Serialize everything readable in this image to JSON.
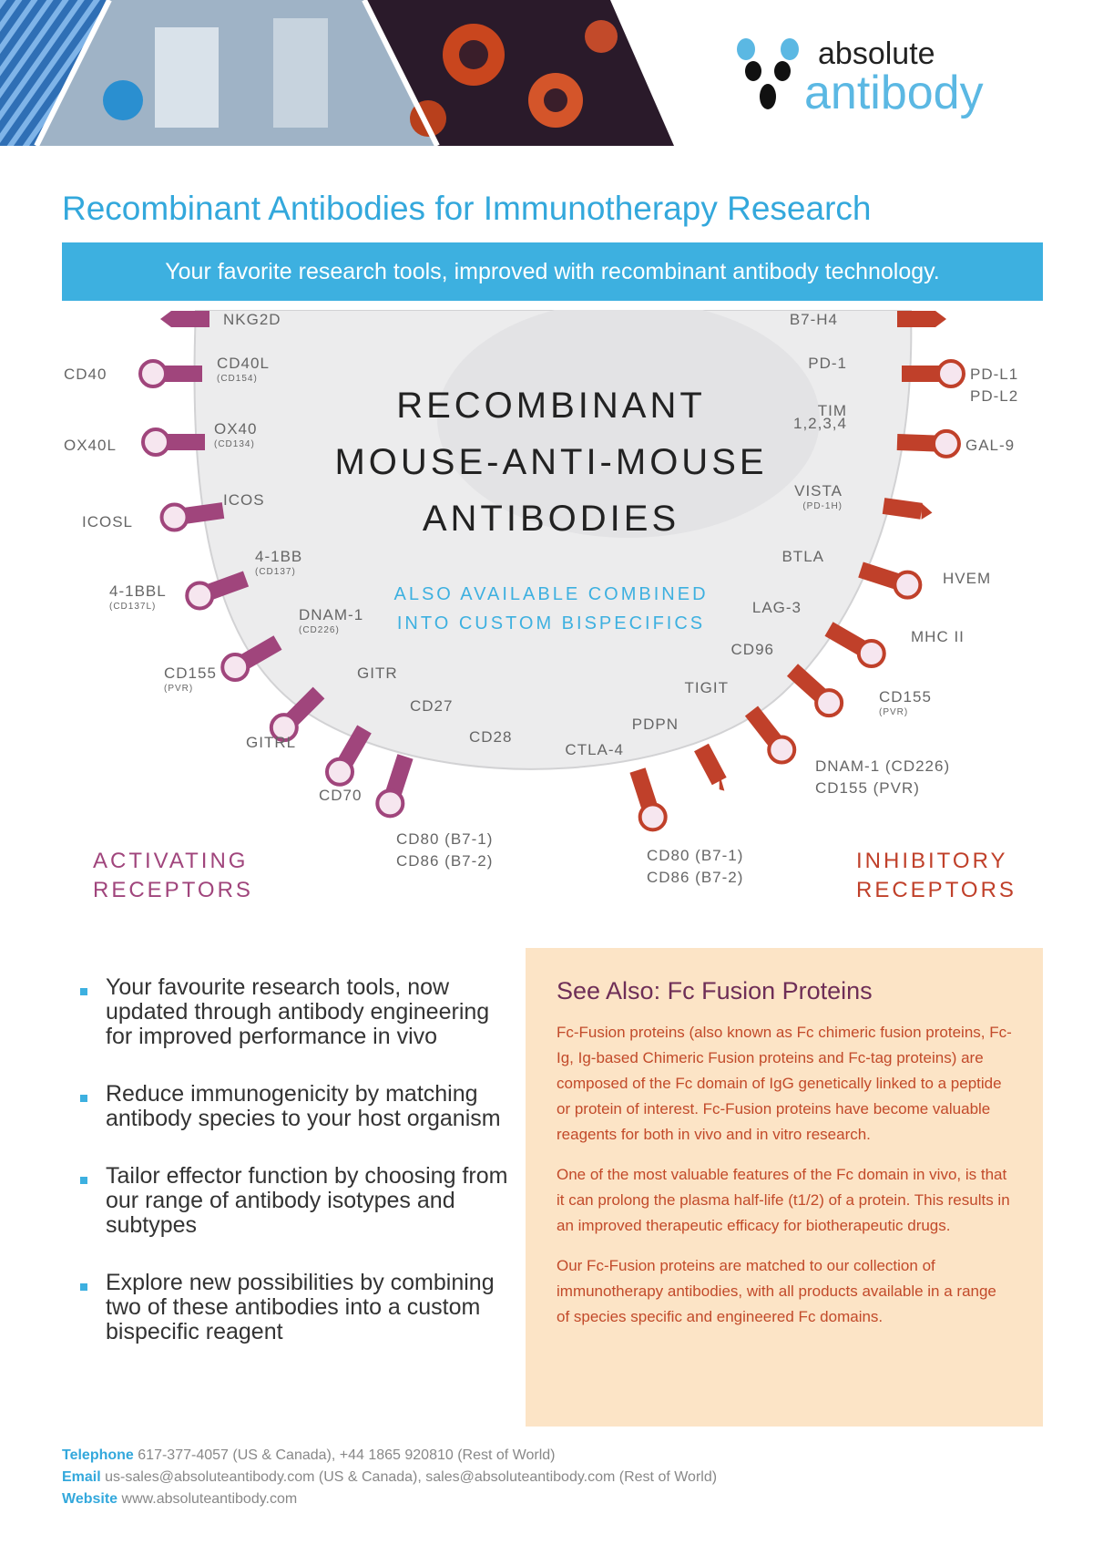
{
  "logo": {
    "line1": "absolute",
    "line2": "antibody"
  },
  "title": "Recombinant Antibodies for Immunotherapy Research",
  "banner": "Your favorite research tools, improved with recombinant antibody technology.",
  "diagram": {
    "center_title": [
      "RECOMBINANT",
      "MOUSE-ANTI-MOUSE",
      "ANTIBODIES"
    ],
    "center_sub": [
      "ALSO AVAILABLE COMBINED",
      "INTO CUSTOM BISPECIFICS"
    ],
    "activating_label": [
      "ACTIVATING",
      "RECEPTORS"
    ],
    "inhibitory_label": [
      "INHIBITORY",
      "RECEPTORS"
    ],
    "colors": {
      "activating": "#a0457c",
      "inhibitory": "#c0402a",
      "ligand_fill": "#f6e6ef",
      "cell": "#e9e9ea",
      "accent": "#3db0e0"
    },
    "activating_receptors": [
      {
        "name": "NKG2D",
        "sub": ""
      },
      {
        "name": "CD40L",
        "sub": "(CD154)"
      },
      {
        "name": "OX40",
        "sub": "(CD134)"
      },
      {
        "name": "ICOS",
        "sub": ""
      },
      {
        "name": "4-1BB",
        "sub": "(CD137)"
      },
      {
        "name": "DNAM-1",
        "sub": "(CD226)"
      },
      {
        "name": "GITR",
        "sub": ""
      },
      {
        "name": "CD27",
        "sub": ""
      },
      {
        "name": "CD28",
        "sub": ""
      }
    ],
    "activating_ligands": [
      {
        "name": "",
        "sub": ""
      },
      {
        "name": "CD40",
        "sub": ""
      },
      {
        "name": "OX40L",
        "sub": ""
      },
      {
        "name": "ICOSL",
        "sub": ""
      },
      {
        "name": "4-1BBL",
        "sub": "(CD137L)"
      },
      {
        "name": "CD155",
        "sub": "(PVR)"
      },
      {
        "name": "GITRL",
        "sub": ""
      },
      {
        "name": "CD70",
        "sub": ""
      },
      {
        "name": "CD80 (B7-1)",
        "sub": "CD86 (B7-2)"
      }
    ],
    "inhibitory_receptors": [
      {
        "name": "B7-H4",
        "sub": ""
      },
      {
        "name": "PD-1",
        "sub": ""
      },
      {
        "name": "TIM",
        "sub": "1,2,3,4"
      },
      {
        "name": "VISTA",
        "sub": "(PD-1H)"
      },
      {
        "name": "BTLA",
        "sub": ""
      },
      {
        "name": "LAG-3",
        "sub": ""
      },
      {
        "name": "CD96",
        "sub": ""
      },
      {
        "name": "TIGIT",
        "sub": ""
      },
      {
        "name": "PDPN",
        "sub": ""
      },
      {
        "name": "CTLA-4",
        "sub": ""
      }
    ],
    "inhibitory_ligands": [
      {
        "name": "",
        "sub": ""
      },
      {
        "name": "PD-L1",
        "sub": "PD-L2"
      },
      {
        "name": "GAL-9",
        "sub": ""
      },
      {
        "name": "",
        "sub": ""
      },
      {
        "name": "HVEM",
        "sub": ""
      },
      {
        "name": "MHC II",
        "sub": ""
      },
      {
        "name": "CD155",
        "sub": "(PVR)"
      },
      {
        "name": "DNAM-1 (CD226)",
        "sub": "CD155 (PVR)"
      },
      {
        "name": "",
        "sub": ""
      },
      {
        "name": "CD80 (B7-1)",
        "sub": "CD86 (B7-2)"
      }
    ]
  },
  "bullets": [
    "Your favourite research tools, now updated through antibody engineering for improved performance in vivo",
    "Reduce immunogenicity by matching antibody species to your host organism",
    "Tailor effector function by choosing from our range of antibody isotypes and subtypes",
    "Explore new possibilities by combining two of these antibodies into a custom bispecific reagent"
  ],
  "see_also": {
    "title": "See Also: Fc Fusion Proteins",
    "paragraphs": [
      "Fc-Fusion proteins (also known as Fc chimeric fusion proteins, Fc-Ig, Ig-based Chimeric Fusion proteins and Fc-tag proteins) are composed of the Fc domain of IgG genetically linked to a peptide or protein of interest. Fc-Fusion proteins have become valuable reagents for both in vivo and in vitro research.",
      "One of the most valuable features of the Fc domain in vivo, is that it can prolong the plasma half-life (t1/2) of a protein. This results in an improved therapeutic efficacy for biotherapeutic drugs.",
      "Our Fc-Fusion proteins are matched to our collection of immunotherapy antibodies, with all products available in a range of species specific and engineered Fc domains."
    ]
  },
  "footer": {
    "telephone_label": "Telephone",
    "telephone": "617-377-4057 (US & Canada), +44 1865 920810 (Rest of World)",
    "email_label": "Email",
    "email": "us-sales@absoluteantibody.com (US & Canada), sales@absoluteantibody.com (Rest of World)",
    "website_label": "Website",
    "website": "www.absoluteantibody.com"
  }
}
